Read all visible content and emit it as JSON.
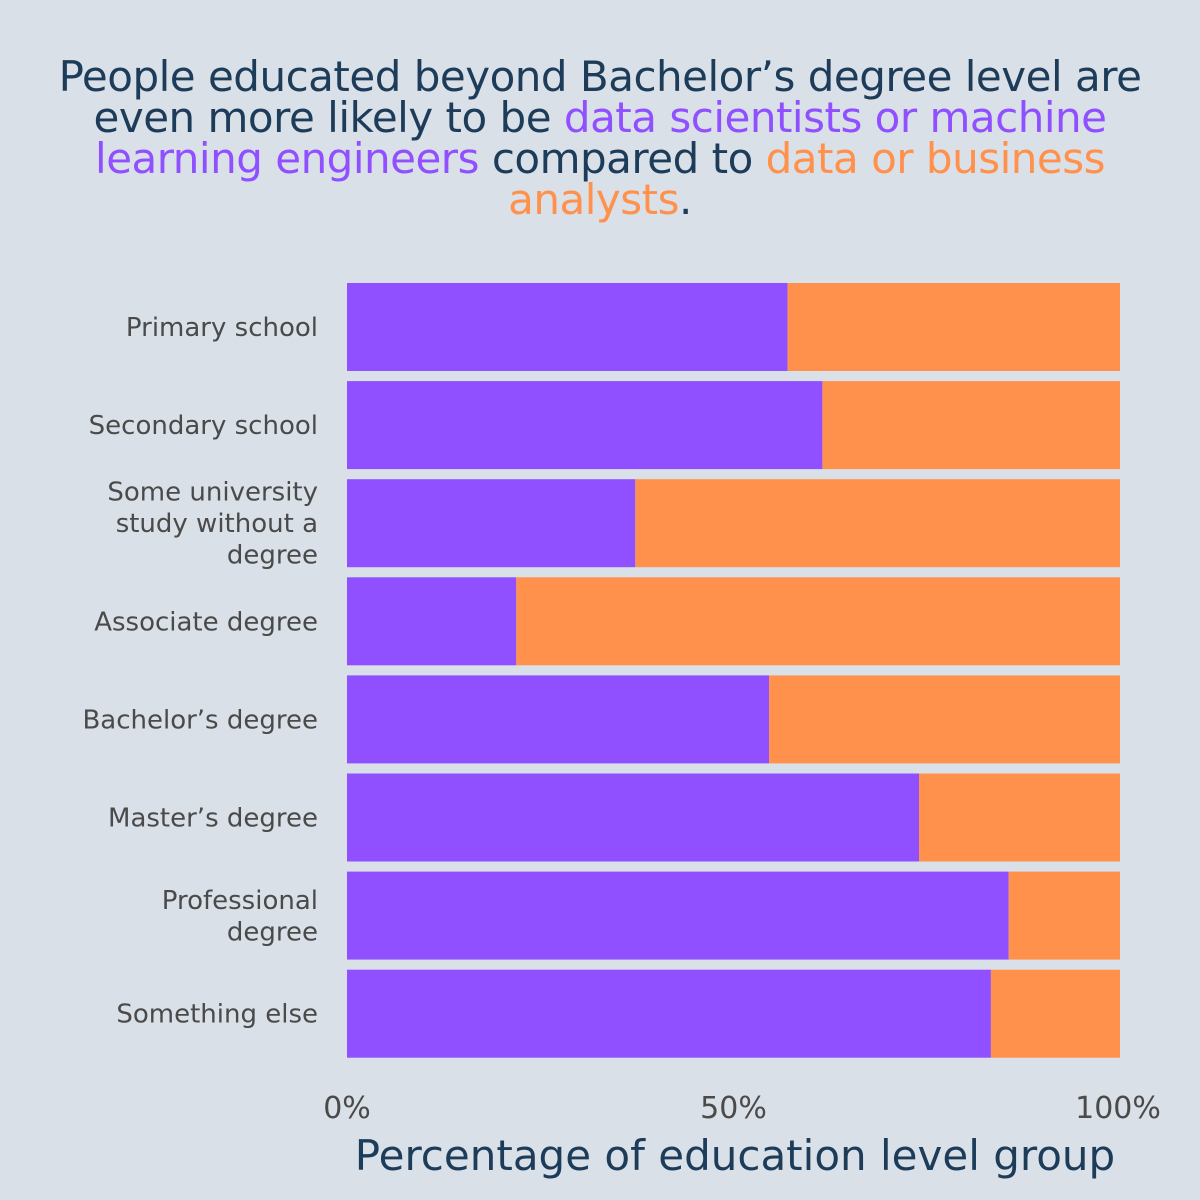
{
  "title": {
    "part1": "People educated beyond Bachelor’s degree level are even more likely to be ",
    "highlight1": "data scientists or machine learning engineers",
    "part2": " compared to ",
    "highlight2": "data or business analysts",
    "part3": "."
  },
  "colors": {
    "background": "#d9e0e7",
    "data_scientists": "#9050ff",
    "analysts": "#ff914d",
    "title_text": "#1d3c5a",
    "label_text": "#4a4a4a"
  },
  "chart_data": {
    "type": "bar",
    "orientation": "horizontal",
    "stacked": true,
    "normalized": true,
    "categories": [
      [
        "Primary school"
      ],
      [
        "Secondary school"
      ],
      [
        "Some university",
        "study without a",
        "degree"
      ],
      [
        "Associate degree"
      ],
      [
        "Bachelor’s degree"
      ],
      [
        "Master’s degree"
      ],
      [
        "Professional",
        "degree"
      ],
      [
        "Something else"
      ]
    ],
    "series": [
      {
        "key": "data_scientists",
        "values": [
          57,
          61.5,
          37.3,
          21.9,
          54.6,
          74,
          85.6,
          83.3
        ]
      },
      {
        "key": "analysts",
        "values": [
          43,
          38.5,
          62.7,
          78.1,
          45.4,
          26,
          14.4,
          16.7
        ]
      }
    ],
    "xticks": [
      "0%",
      "50%",
      "100%"
    ],
    "xtick_values": [
      0,
      50,
      100
    ],
    "xlim": [
      0,
      100
    ],
    "xlabel": "Percentage of education level group",
    "ylabel": "",
    "legend": "none",
    "grid": false
  }
}
